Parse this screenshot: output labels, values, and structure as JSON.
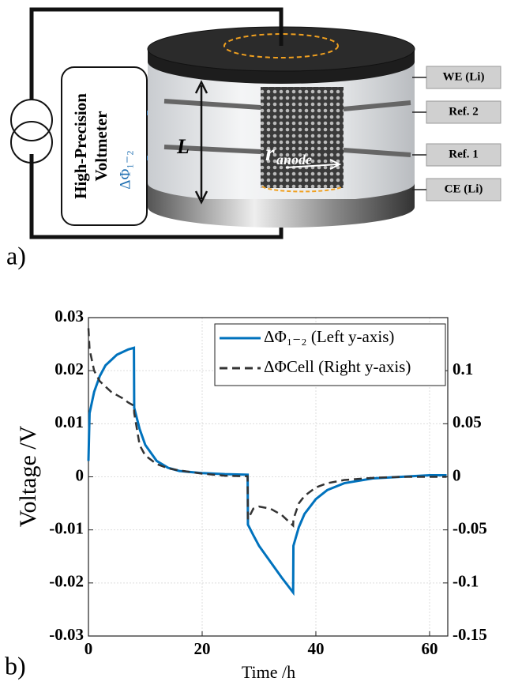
{
  "diagram": {
    "voltmeter_lines": [
      "High-Precision",
      "Voltmeter"
    ],
    "potential_label": "ΔΦ₁₋₂",
    "length_label": "L",
    "radius_symbol": "r",
    "radius_subscript": "anode",
    "electrodes": [
      "WE (Li)",
      "Ref. 2",
      "Ref. 1",
      "CE (Li)"
    ],
    "panel_label": "a)"
  },
  "chart_data": {
    "type": "line",
    "panel_label": "b)",
    "x_label": "Time /h",
    "y_label": "Voltage /V",
    "x": [
      0,
      0.2,
      1,
      2,
      3,
      4,
      5,
      6,
      7,
      8,
      8.05,
      9,
      10,
      12,
      14,
      16,
      20,
      24,
      28,
      28.05,
      29,
      30,
      32,
      34,
      36,
      36.05,
      37,
      38,
      40,
      42,
      45,
      50,
      55,
      60,
      63
    ],
    "series": [
      {
        "name": "ΔΦ₁₋₂ (Left y-axis)",
        "color": "#0072bd",
        "dash": false,
        "values": [
          0.003,
          0.012,
          0.016,
          0.019,
          0.021,
          0.022,
          0.023,
          0.0235,
          0.024,
          0.0243,
          0.013,
          0.009,
          0.006,
          0.003,
          0.0017,
          0.0011,
          0.0007,
          0.0005,
          0.0004,
          -0.009,
          -0.011,
          -0.013,
          -0.016,
          -0.019,
          -0.0218,
          -0.013,
          -0.0095,
          -0.007,
          -0.0042,
          -0.0025,
          -0.0012,
          -0.0003,
          0,
          0.0003,
          0.0003
        ]
      },
      {
        "name": "ΔΦCell (Right y-axis)",
        "color": "#333333",
        "dash": true,
        "axis": "y2",
        "values": [
          0.14,
          0.12,
          0.1,
          0.09,
          0.085,
          0.08,
          0.077,
          0.074,
          0.07,
          0.067,
          0.06,
          0.03,
          0.02,
          0.012,
          0.008,
          0.006,
          0.003,
          0.001,
          0.0005,
          -0.04,
          -0.03,
          -0.028,
          -0.03,
          -0.036,
          -0.046,
          -0.04,
          -0.025,
          -0.018,
          -0.01,
          -0.006,
          -0.003,
          -0.001,
          0,
          0,
          0
        ]
      }
    ],
    "xlim": [
      0,
      63.2
    ],
    "xticks": [
      0,
      20,
      40,
      60
    ],
    "ylim": [
      -0.03,
      0.03
    ],
    "yticks": [
      -0.03,
      -0.02,
      -0.01,
      0,
      0.01,
      0.02,
      0.03
    ],
    "y2lim": [
      -0.15,
      0.15
    ],
    "y2ticks": [
      -0.15,
      -0.1,
      -0.05,
      0,
      0.05,
      0.1
    ],
    "grid": true,
    "legend": "top-right"
  }
}
